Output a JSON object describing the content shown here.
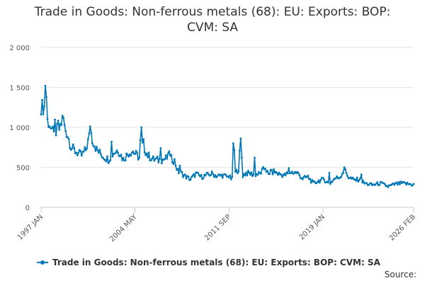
{
  "chart_data": {
    "type": "line",
    "title_line1": "Trade in Goods: Non-ferrous metals (68): EU: Exports: BOP:",
    "title_line2": "CVM: SA",
    "xlabel": "",
    "ylabel": "",
    "ylim": [
      0,
      2000
    ],
    "yticks": [
      0,
      500,
      1000,
      1500,
      2000
    ],
    "ytick_labels": [
      "0",
      "500",
      "1 000",
      "1 500",
      "2 000"
    ],
    "xticks": [
      "1997 JAN",
      "2004 MAY",
      "2011 SEP",
      "2019 JAN",
      "2026 FEB"
    ],
    "xtick_index": [
      0,
      88,
      176,
      264,
      349
    ],
    "n_points": 350,
    "grid": true,
    "legend_position": "bottom-left",
    "series": [
      {
        "name": "Trade in Goods: Non-ferrous metals (68): EU: Exports: BOP: CVM: SA",
        "color": "#0077b6",
        "anchors": [
          [
            0,
            1260
          ],
          [
            3,
            1250
          ],
          [
            4,
            1520
          ],
          [
            5,
            1100
          ],
          [
            8,
            1040
          ],
          [
            10,
            920
          ],
          [
            12,
            1000
          ],
          [
            15,
            1050
          ],
          [
            17,
            980
          ],
          [
            20,
            1100
          ],
          [
            22,
            1000
          ],
          [
            25,
            900
          ],
          [
            28,
            760
          ],
          [
            32,
            700
          ],
          [
            38,
            650
          ],
          [
            42,
            720
          ],
          [
            45,
            880
          ],
          [
            46,
            1010
          ],
          [
            48,
            850
          ],
          [
            52,
            720
          ],
          [
            58,
            640
          ],
          [
            63,
            600
          ],
          [
            68,
            680
          ],
          [
            72,
            720
          ],
          [
            77,
            600
          ],
          [
            82,
            680
          ],
          [
            86,
            700
          ],
          [
            92,
            620
          ],
          [
            94,
            1000
          ],
          [
            95,
            780
          ],
          [
            100,
            650
          ],
          [
            105,
            600
          ],
          [
            110,
            590
          ],
          [
            115,
            600
          ],
          [
            120,
            630
          ],
          [
            125,
            580
          ],
          [
            128,
            450
          ],
          [
            132,
            420
          ],
          [
            136,
            380
          ],
          [
            140,
            350
          ],
          [
            145,
            420
          ],
          [
            150,
            380
          ],
          [
            155,
            400
          ],
          [
            160,
            420
          ],
          [
            165,
            390
          ],
          [
            170,
            400
          ],
          [
            175,
            380
          ],
          [
            178,
            420
          ],
          [
            180,
            360
          ],
          [
            181,
            720
          ],
          [
            182,
            430
          ],
          [
            185,
            480
          ],
          [
            187,
            850
          ],
          [
            189,
            400
          ],
          [
            192,
            430
          ],
          [
            196,
            420
          ],
          [
            200,
            410
          ],
          [
            205,
            420
          ],
          [
            210,
            500
          ],
          [
            213,
            400
          ],
          [
            218,
            450
          ],
          [
            222,
            420
          ],
          [
            228,
            400
          ],
          [
            234,
            440
          ],
          [
            240,
            430
          ],
          [
            245,
            360
          ],
          [
            250,
            380
          ],
          [
            255,
            300
          ],
          [
            260,
            330
          ],
          [
            265,
            350
          ],
          [
            270,
            290
          ],
          [
            275,
            360
          ],
          [
            280,
            380
          ],
          [
            284,
            470
          ],
          [
            288,
            380
          ],
          [
            293,
            340
          ],
          [
            298,
            350
          ],
          [
            303,
            300
          ],
          [
            310,
            280
          ],
          [
            318,
            300
          ],
          [
            325,
            260
          ],
          [
            332,
            290
          ],
          [
            338,
            300
          ],
          [
            345,
            290
          ],
          [
            349,
            285
          ]
        ],
        "spikes": [
          [
            4,
            1520
          ],
          [
            5,
            1380
          ],
          [
            14,
            900
          ],
          [
            21,
            1120
          ],
          [
            46,
            1010
          ],
          [
            66,
            820
          ],
          [
            94,
            1000
          ],
          [
            96,
            850
          ],
          [
            112,
            740
          ],
          [
            120,
            700
          ],
          [
            130,
            520
          ],
          [
            178,
            350
          ],
          [
            180,
            800
          ],
          [
            187,
            860
          ],
          [
            200,
            620
          ],
          [
            215,
            470
          ],
          [
            232,
            490
          ],
          [
            270,
            430
          ],
          [
            284,
            500
          ],
          [
            300,
            410
          ]
        ]
      }
    ]
  },
  "source_label": "Source:"
}
